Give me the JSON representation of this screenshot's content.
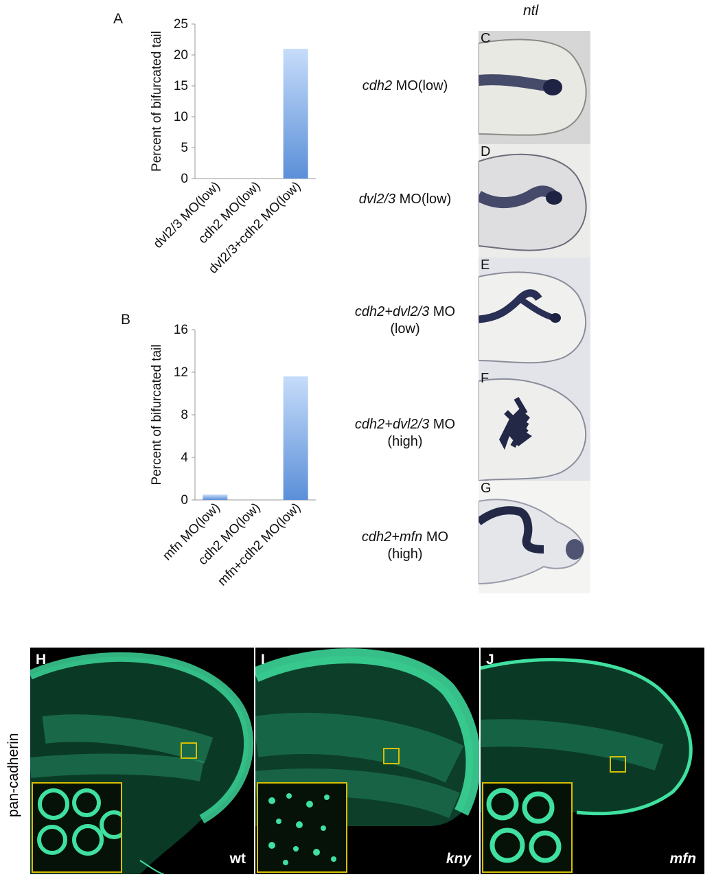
{
  "panel_letters": {
    "a": "A",
    "b": "B"
  },
  "column_header": "ntl",
  "chart_data": [
    {
      "type": "bar",
      "panel": "A",
      "categories": [
        "dvl2/3 MO(low)",
        "cdh2 MO(low)",
        "dvl2/3+cdh2 MO(low)"
      ],
      "values": [
        0,
        0,
        21
      ],
      "ylabel": "Percent of bifurcated tail",
      "ylim": [
        0,
        25
      ],
      "yticks": [
        "0",
        "5",
        "10",
        "15",
        "20",
        "25"
      ],
      "grid": false,
      "bar_color": "#5b8fd8"
    },
    {
      "type": "bar",
      "panel": "B",
      "categories": [
        "mfn MO(low)",
        "cdh2 MO(low)",
        "mfn+cdh2 MO(low)"
      ],
      "values": [
        0.5,
        0,
        11.6
      ],
      "ylabel": "Percent of bifurcated tail",
      "ylim": [
        0,
        16
      ],
      "yticks": [
        "0",
        "4",
        "8",
        "12",
        "16"
      ],
      "grid": false,
      "bar_color": "#5b8fd8"
    }
  ],
  "rows": [
    {
      "letter": "C",
      "gene": "cdh2",
      "mo": " MO(low)",
      "line2": ""
    },
    {
      "letter": "D",
      "gene": "dvl2/3",
      "mo": " MO(low)",
      "line2": ""
    },
    {
      "letter": "E",
      "gene": "cdh2+dvl2/3",
      "mo": " MO",
      "line2": "(low)"
    },
    {
      "letter": "F",
      "gene": "cdh2+dvl2/3",
      "mo": " MO",
      "line2": "(high)"
    },
    {
      "letter": "G",
      "gene": "cdh2+mfn",
      "mo": " MO",
      "line2": "(high)"
    }
  ],
  "stain_label": "pan-cadherin",
  "micro_panels": [
    {
      "letter": "H",
      "genotype": "wt",
      "italic": false
    },
    {
      "letter": "I",
      "genotype": "kny",
      "italic": true
    },
    {
      "letter": "J",
      "genotype": "mfn",
      "italic": true
    }
  ],
  "colors": {
    "stain": "#3fe0a0",
    "inset_border": "#d8c000",
    "in_situ": "#2a2f55"
  }
}
